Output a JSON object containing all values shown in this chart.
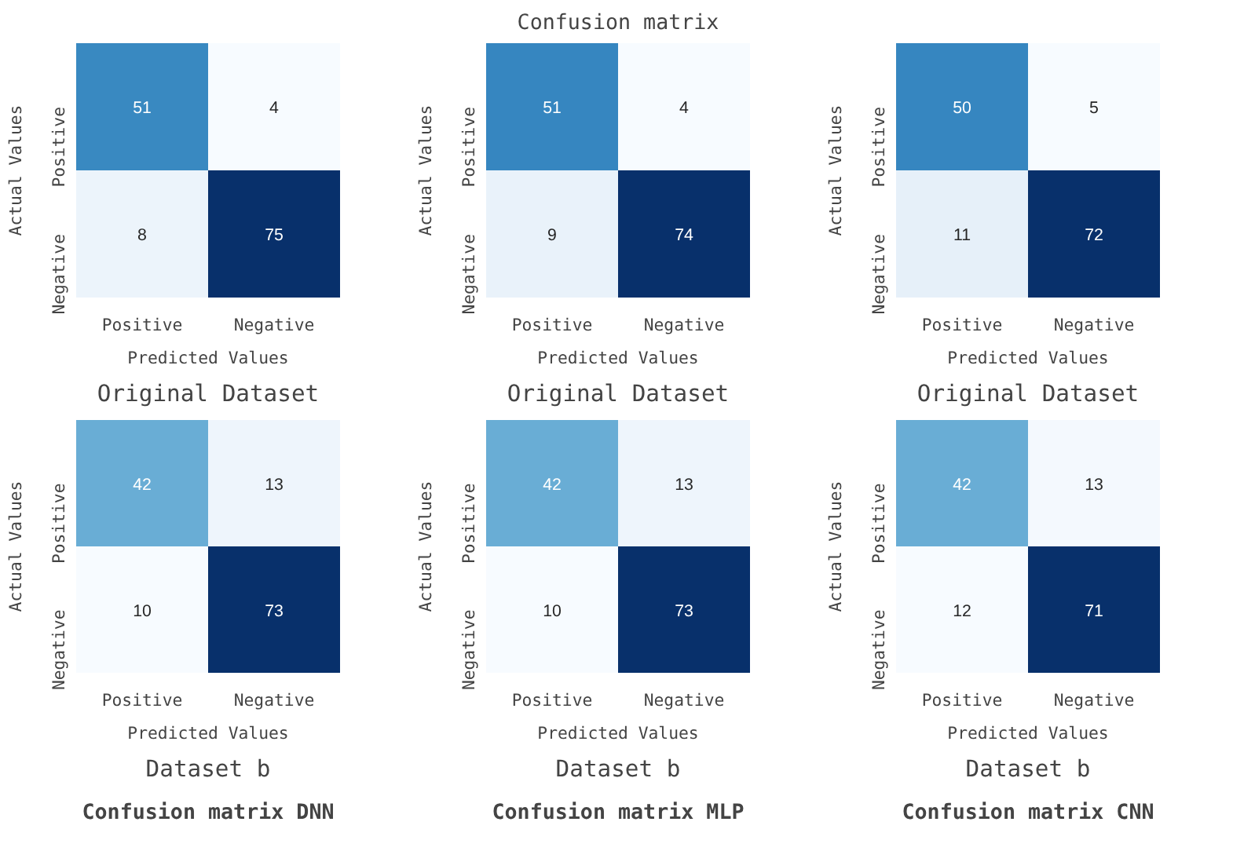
{
  "chart_data": [
    {
      "type": "heatmap",
      "xlabel": "Predicted Values",
      "ylabel": "Actual Values",
      "categories": [
        "Positive",
        "Negative"
      ],
      "y_categories": [
        "Positive",
        "Negative"
      ],
      "cells": [
        [
          51,
          4
        ],
        [
          8,
          75
        ]
      ],
      "data_labels": true,
      "annotations": [
        "Original Dataset"
      ]
    },
    {
      "type": "heatmap",
      "title": "Confusion matrix",
      "xlabel": "Predicted Values",
      "ylabel": "Actual Values",
      "categories": [
        "Positive",
        "Negative"
      ],
      "y_categories": [
        "Positive",
        "Negative"
      ],
      "cells": [
        [
          51,
          4
        ],
        [
          9,
          74
        ]
      ],
      "data_labels": true,
      "annotations": [
        "Original Dataset"
      ]
    },
    {
      "type": "heatmap",
      "xlabel": "Predicted Values",
      "ylabel": "Actual Values",
      "categories": [
        "Positive",
        "Negative"
      ],
      "y_categories": [
        "Positive",
        "Negative"
      ],
      "cells": [
        [
          50,
          5
        ],
        [
          11,
          72
        ]
      ],
      "data_labels": true,
      "annotations": [
        "Original Dataset"
      ]
    },
    {
      "type": "heatmap",
      "xlabel": "Predicted Values",
      "ylabel": "Actual Values",
      "categories": [
        "Positive",
        "Negative"
      ],
      "y_categories": [
        "Positive",
        "Negative"
      ],
      "cells": [
        [
          42,
          13
        ],
        [
          10,
          73
        ]
      ],
      "data_labels": true,
      "annotations": [
        "Dataset b",
        "Confusion matrix DNN"
      ]
    },
    {
      "type": "heatmap",
      "xlabel": "Predicted Values",
      "ylabel": "Actual Values",
      "categories": [
        "Positive",
        "Negative"
      ],
      "y_categories": [
        "Positive",
        "Negative"
      ],
      "cells": [
        [
          42,
          13
        ],
        [
          10,
          73
        ]
      ],
      "data_labels": true,
      "annotations": [
        "Dataset b",
        "Confusion matrix MLP"
      ]
    },
    {
      "type": "heatmap",
      "xlabel": "Predicted Values",
      "ylabel": "Actual Values",
      "categories": [
        "Positive",
        "Negative"
      ],
      "y_categories": [
        "Positive",
        "Negative"
      ],
      "cells": [
        [
          42,
          13
        ],
        [
          12,
          71
        ]
      ],
      "data_labels": true,
      "annotations": [
        "Dataset b",
        "Confusion matrix CNN"
      ]
    }
  ]
}
